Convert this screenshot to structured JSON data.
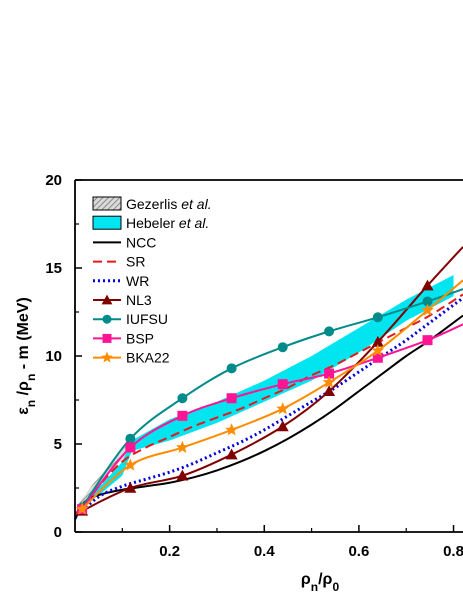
{
  "chart_data": {
    "type": "line",
    "xlabel": "ρn/ρ0",
    "ylabel": "εn /ρn - m (MeV)",
    "xlim": [
      0,
      0.82
    ],
    "ylim": [
      0,
      20
    ],
    "x_ticks": [
      "0.2",
      "0.4",
      "0.6",
      "0.8"
    ],
    "y_ticks": [
      "0",
      "5",
      "10",
      "15",
      "20"
    ],
    "legend_position": "top-left",
    "bands": [
      {
        "name": "Gezerlis et al.",
        "style": "hatched",
        "color": "#a0a0a0",
        "lower": [
          [
            0.01,
            1.5
          ],
          [
            0.04,
            2.4
          ],
          [
            0.08,
            3.6
          ],
          [
            0.12,
            4.6
          ]
        ],
        "upper": [
          [
            0.01,
            1.7
          ],
          [
            0.04,
            2.8
          ],
          [
            0.08,
            4.0
          ],
          [
            0.12,
            5.3
          ]
        ]
      },
      {
        "name": "Hebeler et al.",
        "style": "filled",
        "color": "#00e5ef",
        "lower": [
          [
            0.01,
            1.3
          ],
          [
            0.06,
            2.3
          ],
          [
            0.1,
            3.2
          ],
          [
            0.12,
            4.6
          ],
          [
            0.2,
            5.2
          ],
          [
            0.3,
            6.2
          ],
          [
            0.4,
            7.4
          ],
          [
            0.5,
            8.6
          ],
          [
            0.6,
            10.2
          ],
          [
            0.7,
            12.0
          ],
          [
            0.8,
            13.4
          ]
        ],
        "upper": [
          [
            0.01,
            1.5
          ],
          [
            0.06,
            2.8
          ],
          [
            0.1,
            4.0
          ],
          [
            0.12,
            5.2
          ],
          [
            0.2,
            6.4
          ],
          [
            0.3,
            7.4
          ],
          [
            0.4,
            8.6
          ],
          [
            0.5,
            10.0
          ],
          [
            0.6,
            11.6
          ],
          [
            0.7,
            13.2
          ],
          [
            0.8,
            14.6
          ]
        ]
      }
    ],
    "series": [
      {
        "name": "NCC",
        "color": "#000000",
        "dash": "solid",
        "marker": "none",
        "points": [
          [
            0.0,
            0.7
          ],
          [
            0.02,
            1.7
          ],
          [
            0.05,
            2.1
          ],
          [
            0.1,
            2.4
          ],
          [
            0.15,
            2.6
          ],
          [
            0.2,
            2.8
          ],
          [
            0.25,
            3.1
          ],
          [
            0.3,
            3.5
          ],
          [
            0.35,
            4.0
          ],
          [
            0.4,
            4.6
          ],
          [
            0.45,
            5.3
          ],
          [
            0.5,
            6.1
          ],
          [
            0.55,
            7.0
          ],
          [
            0.6,
            8.0
          ],
          [
            0.65,
            9.0
          ],
          [
            0.7,
            10.0
          ],
          [
            0.75,
            10.9
          ],
          [
            0.82,
            12.3
          ]
        ]
      },
      {
        "name": "SR",
        "color": "#e31a1c",
        "dash": "dashed",
        "marker": "none",
        "points": [
          [
            0.0,
            1.0
          ],
          [
            0.05,
            2.6
          ],
          [
            0.1,
            4.0
          ],
          [
            0.15,
            4.8
          ],
          [
            0.2,
            5.4
          ],
          [
            0.25,
            6.0
          ],
          [
            0.3,
            6.5
          ],
          [
            0.35,
            7.0
          ],
          [
            0.4,
            7.6
          ],
          [
            0.45,
            8.2
          ],
          [
            0.5,
            8.9
          ],
          [
            0.55,
            9.5
          ],
          [
            0.6,
            10.2
          ],
          [
            0.65,
            10.9
          ],
          [
            0.7,
            11.6
          ],
          [
            0.75,
            12.3
          ],
          [
            0.82,
            13.5
          ]
        ]
      },
      {
        "name": "WR",
        "color": "#0000dd",
        "dash": "dotted",
        "marker": "none",
        "points": [
          [
            0.0,
            0.8
          ],
          [
            0.05,
            2.0
          ],
          [
            0.1,
            2.6
          ],
          [
            0.15,
            3.0
          ],
          [
            0.2,
            3.4
          ],
          [
            0.25,
            3.9
          ],
          [
            0.3,
            4.5
          ],
          [
            0.35,
            5.1
          ],
          [
            0.4,
            5.8
          ],
          [
            0.45,
            6.6
          ],
          [
            0.5,
            7.4
          ],
          [
            0.55,
            8.2
          ],
          [
            0.6,
            9.1
          ],
          [
            0.65,
            10.0
          ],
          [
            0.7,
            10.9
          ],
          [
            0.75,
            11.9
          ],
          [
            0.82,
            13.3
          ]
        ]
      },
      {
        "name": "NL3",
        "color": "#800000",
        "dash": "solid",
        "marker": "triangle",
        "points": [
          [
            0.015,
            1.2
          ],
          [
            0.117,
            2.5
          ],
          [
            0.227,
            3.2
          ],
          [
            0.331,
            4.4
          ],
          [
            0.439,
            6.0
          ],
          [
            0.537,
            8.0
          ],
          [
            0.64,
            10.8
          ],
          [
            0.745,
            14.0
          ],
          [
            0.82,
            16.2
          ]
        ],
        "markers": [
          [
            0.015,
            1.2
          ],
          [
            0.117,
            2.5
          ],
          [
            0.227,
            3.2
          ],
          [
            0.331,
            4.4
          ],
          [
            0.439,
            6.0
          ],
          [
            0.537,
            8.0
          ],
          [
            0.64,
            10.8
          ],
          [
            0.745,
            14.0
          ]
        ]
      },
      {
        "name": "IUFSU",
        "color": "#008b8b",
        "dash": "solid",
        "marker": "circle",
        "points": [
          [
            0.015,
            1.4
          ],
          [
            0.117,
            5.3
          ],
          [
            0.227,
            7.6
          ],
          [
            0.331,
            9.3
          ],
          [
            0.439,
            10.5
          ],
          [
            0.537,
            11.4
          ],
          [
            0.64,
            12.2
          ],
          [
            0.745,
            13.1
          ],
          [
            0.82,
            13.8
          ]
        ],
        "markers": [
          [
            0.015,
            1.4
          ],
          [
            0.117,
            5.3
          ],
          [
            0.227,
            7.6
          ],
          [
            0.331,
            9.3
          ],
          [
            0.439,
            10.5
          ],
          [
            0.537,
            11.4
          ],
          [
            0.64,
            12.2
          ],
          [
            0.745,
            13.1
          ]
        ]
      },
      {
        "name": "BSP",
        "color": "#ff1493",
        "dash": "solid",
        "marker": "square",
        "points": [
          [
            0.015,
            1.3
          ],
          [
            0.117,
            4.8
          ],
          [
            0.227,
            6.6
          ],
          [
            0.331,
            7.6
          ],
          [
            0.439,
            8.4
          ],
          [
            0.537,
            9.0
          ],
          [
            0.64,
            9.9
          ],
          [
            0.745,
            10.9
          ],
          [
            0.82,
            11.8
          ]
        ],
        "markers": [
          [
            0.015,
            1.3
          ],
          [
            0.117,
            4.8
          ],
          [
            0.227,
            6.6
          ],
          [
            0.331,
            7.6
          ],
          [
            0.439,
            8.4
          ],
          [
            0.537,
            9.0
          ],
          [
            0.64,
            9.9
          ],
          [
            0.745,
            10.9
          ]
        ]
      },
      {
        "name": "BKA22",
        "color": "#ff8c00",
        "dash": "solid",
        "marker": "star",
        "points": [
          [
            0.015,
            1.3
          ],
          [
            0.117,
            3.8
          ],
          [
            0.227,
            4.8
          ],
          [
            0.331,
            5.8
          ],
          [
            0.439,
            7.0
          ],
          [
            0.537,
            8.5
          ],
          [
            0.64,
            10.3
          ],
          [
            0.745,
            12.6
          ],
          [
            0.82,
            14.3
          ]
        ],
        "markers": [
          [
            0.015,
            1.3
          ],
          [
            0.117,
            3.8
          ],
          [
            0.227,
            4.8
          ],
          [
            0.331,
            5.8
          ],
          [
            0.439,
            7.0
          ],
          [
            0.537,
            8.5
          ],
          [
            0.64,
            10.3
          ],
          [
            0.745,
            12.6
          ]
        ]
      }
    ]
  }
}
